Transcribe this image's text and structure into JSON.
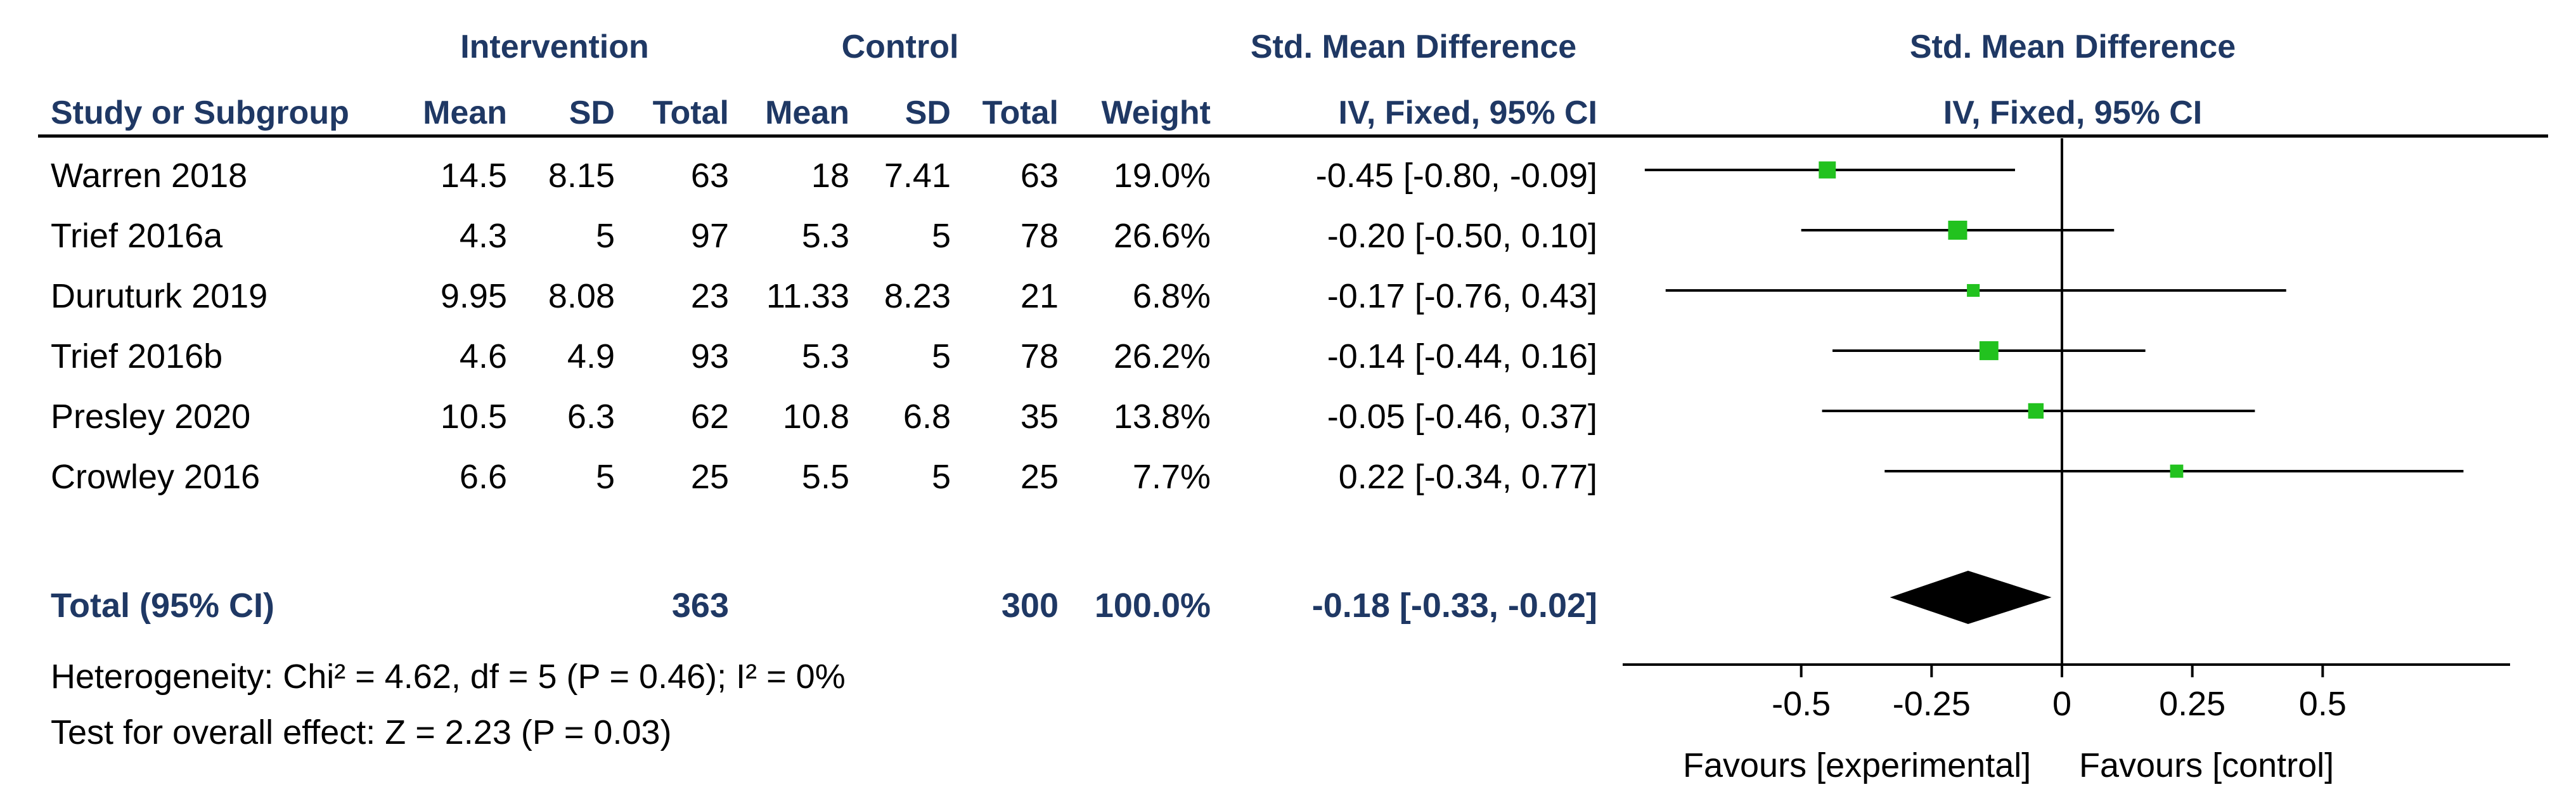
{
  "headers": {
    "group_intervention": "Intervention",
    "group_control": "Control",
    "smd_header_table": "Std. Mean Difference",
    "smd_method_table": "IV, Fixed, 95% CI",
    "smd_header_plot": "Std. Mean Difference",
    "smd_method_plot": "IV, Fixed, 95% CI",
    "study": "Study or Subgroup",
    "mean": "Mean",
    "sd": "SD",
    "total": "Total",
    "mean_c": "Mean",
    "sd_c": "SD",
    "total_c": "Total",
    "weight": "Weight"
  },
  "rows": [
    {
      "study": "Warren  2018",
      "mean_i": "14.5",
      "sd_i": "8.15",
      "total_i": "63",
      "mean_c": "18",
      "sd_c": "7.41",
      "total_c": "63",
      "weight": "19.0%",
      "ci": "-0.45 [-0.80, -0.09]"
    },
    {
      "study": "Trief  2016a",
      "mean_i": "4.3",
      "sd_i": "5",
      "total_i": "97",
      "mean_c": "5.3",
      "sd_c": "5",
      "total_c": "78",
      "weight": "26.6%",
      "ci": "-0.20 [-0.50, 0.10]"
    },
    {
      "study": "Duruturk  2019",
      "mean_i": "9.95",
      "sd_i": "8.08",
      "total_i": "23",
      "mean_c": "11.33",
      "sd_c": "8.23",
      "total_c": "21",
      "weight": "6.8%",
      "ci": "-0.17 [-0.76, 0.43]"
    },
    {
      "study": "Trief  2016b",
      "mean_i": "4.6",
      "sd_i": "4.9",
      "total_i": "93",
      "mean_c": "5.3",
      "sd_c": "5",
      "total_c": "78",
      "weight": "26.2%",
      "ci": "-0.14 [-0.44, 0.16]"
    },
    {
      "study": "Presley  2020",
      "mean_i": "10.5",
      "sd_i": "6.3",
      "total_i": "62",
      "mean_c": "10.8",
      "sd_c": "6.8",
      "total_c": "35",
      "weight": "13.8%",
      "ci": "-0.05 [-0.46, 0.37]"
    },
    {
      "study": "Crowley  2016",
      "mean_i": "6.6",
      "sd_i": "5",
      "total_i": "25",
      "mean_c": "5.5",
      "sd_c": "5",
      "total_c": "25",
      "weight": "7.7%",
      "ci": "0.22 [-0.34, 0.77]"
    }
  ],
  "total": {
    "label": "Total (95% CI)",
    "total_i": "363",
    "total_c": "300",
    "weight": "100.0%",
    "ci": "-0.18 [-0.33, -0.02]"
  },
  "heterogeneity": "Heterogeneity: Chi² = 4.62, df = 5 (P = 0.46); I² = 0%",
  "overall_effect": "Test for overall effect: Z = 2.23 (P = 0.03)",
  "axis": {
    "favours_left": "Favours [experimental]",
    "favours_right": "Favours [control]"
  },
  "colors": {
    "marker": "#22c21f",
    "diamond": "#000000",
    "header": "#1f3864"
  },
  "chart_data": {
    "type": "forest",
    "xlim": [
      -0.75,
      0.75
    ],
    "ticks": [
      -0.5,
      -0.25,
      0,
      0.25,
      0.5
    ],
    "tick_labels": [
      "-0.5",
      "-0.25",
      "0",
      "0.25",
      "0.5"
    ],
    "studies": [
      {
        "name": "Warren  2018",
        "est": -0.45,
        "lo": -0.8,
        "hi": -0.09,
        "weight": 19.0
      },
      {
        "name": "Trief  2016a",
        "est": -0.2,
        "lo": -0.5,
        "hi": 0.1,
        "weight": 26.6
      },
      {
        "name": "Duruturk  2019",
        "est": -0.17,
        "lo": -0.76,
        "hi": 0.43,
        "weight": 6.8
      },
      {
        "name": "Trief  2016b",
        "est": -0.14,
        "lo": -0.44,
        "hi": 0.16,
        "weight": 26.2
      },
      {
        "name": "Presley  2020",
        "est": -0.05,
        "lo": -0.46,
        "hi": 0.37,
        "weight": 13.8
      },
      {
        "name": "Crowley  2016",
        "est": 0.22,
        "lo": -0.34,
        "hi": 0.77,
        "weight": 7.7
      }
    ],
    "pooled": {
      "est": -0.18,
      "lo": -0.33,
      "hi": -0.02
    }
  }
}
